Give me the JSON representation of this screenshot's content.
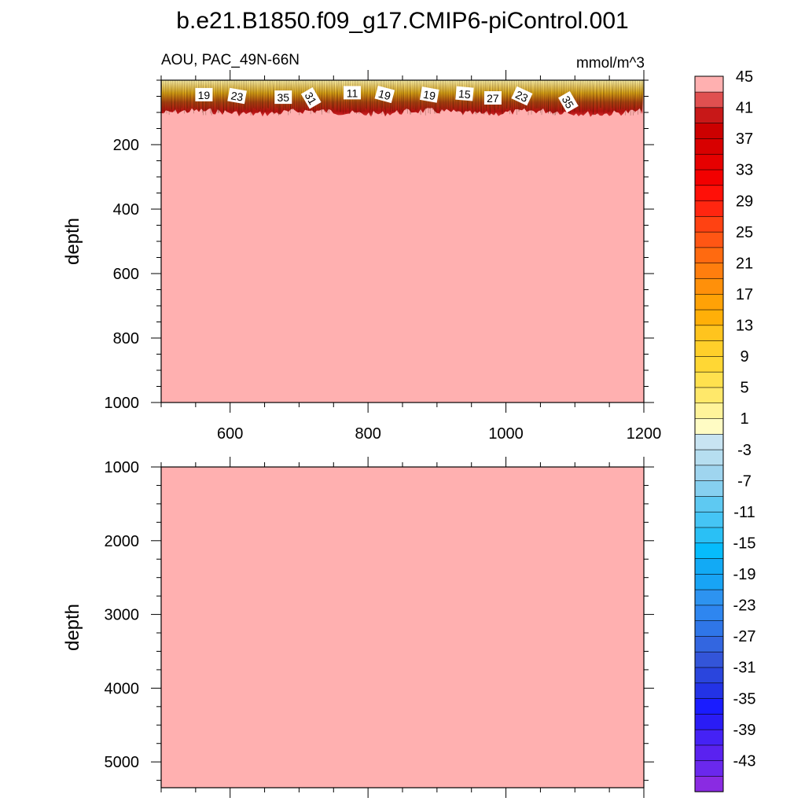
{
  "chart_data": {
    "type": "heatmap",
    "title": "b.e21.B1850.f09_g17.CMIP6-piControl.001",
    "subtitle_left": "AOU, PAC_49N-66N",
    "subtitle_right": "mmol/m^3",
    "xlim": [
      500,
      1200
    ],
    "x_ticks": [
      600,
      800,
      1000,
      1200
    ],
    "panels": [
      {
        "ylabel": "depth",
        "ylim": [
          0,
          1000
        ],
        "y_ticks": [
          200,
          400,
          600,
          800,
          1000
        ],
        "fill_value": 47,
        "surface_layer_bottom": 100
      },
      {
        "ylabel": "depth",
        "ylim": [
          1000,
          5350
        ],
        "y_ticks": [
          1000,
          2000,
          3000,
          4000,
          5000
        ],
        "fill_value": 47
      }
    ],
    "contour_labels": [
      {
        "text": "19",
        "x": 562,
        "y": 46,
        "angle": 0
      },
      {
        "text": "23",
        "x": 610,
        "y": 50,
        "angle": 10
      },
      {
        "text": "35",
        "x": 677,
        "y": 54,
        "angle": 0
      },
      {
        "text": "31",
        "x": 717,
        "y": 56,
        "angle": 60
      },
      {
        "text": "11",
        "x": 777,
        "y": 40,
        "angle": 0
      },
      {
        "text": "19",
        "x": 824,
        "y": 45,
        "angle": 15
      },
      {
        "text": "19",
        "x": 889,
        "y": 46,
        "angle": 10
      },
      {
        "text": "15",
        "x": 940,
        "y": 43,
        "angle": 5
      },
      {
        "text": "27",
        "x": 981,
        "y": 56,
        "angle": 0
      },
      {
        "text": "23",
        "x": 1023,
        "y": 50,
        "angle": 25
      },
      {
        "text": "35",
        "x": 1090,
        "y": 68,
        "angle": 60
      }
    ],
    "colorbar": {
      "levels": [
        -45,
        -43,
        -41,
        -39,
        -37,
        -35,
        -33,
        -31,
        -29,
        -27,
        -25,
        -23,
        -21,
        -19,
        -17,
        -15,
        -13,
        -11,
        -9,
        -7,
        -5,
        -3,
        -1,
        1,
        3,
        5,
        7,
        9,
        11,
        13,
        15,
        17,
        19,
        21,
        23,
        25,
        27,
        29,
        31,
        33,
        35,
        37,
        39,
        41,
        43,
        45
      ],
      "colors": [
        "#8a2be2",
        "#6a28ed",
        "#5a22f0",
        "#4522f5",
        "#2a1cf5",
        "#1a1cff",
        "#2333e6",
        "#2a45dd",
        "#3355d9",
        "#3366e0",
        "#2f76e8",
        "#2e86f0",
        "#2d93f0",
        "#18a4f5",
        "#12aaf5",
        "#06bcfc",
        "#2ac0f5",
        "#45c5f5",
        "#5ec9f2",
        "#86d0f0",
        "#9fd5ef",
        "#b6def0",
        "#c8e4f2",
        "#fffcc4",
        "#fff39a",
        "#ffe86a",
        "#ffe14e",
        "#ffd734",
        "#ffcf2a",
        "#ffc41e",
        "#ffaf08",
        "#ffa206",
        "#ff900a",
        "#ff7e0e",
        "#ff6a10",
        "#ff5614",
        "#ff4212",
        "#ff2610",
        "#ff1008",
        "#f20000",
        "#e60000",
        "#d80000",
        "#cc0000",
        "#c81818",
        "#e05050",
        "#ffb0b0"
      ],
      "labels": [
        "-43",
        "-39",
        "-35",
        "-31",
        "-27",
        "-23",
        "-19",
        "-15",
        "-11",
        "-7",
        "-3",
        "1",
        "5",
        "9",
        "13",
        "17",
        "21",
        "25",
        "29",
        "33",
        "37",
        "41",
        "45"
      ]
    }
  }
}
